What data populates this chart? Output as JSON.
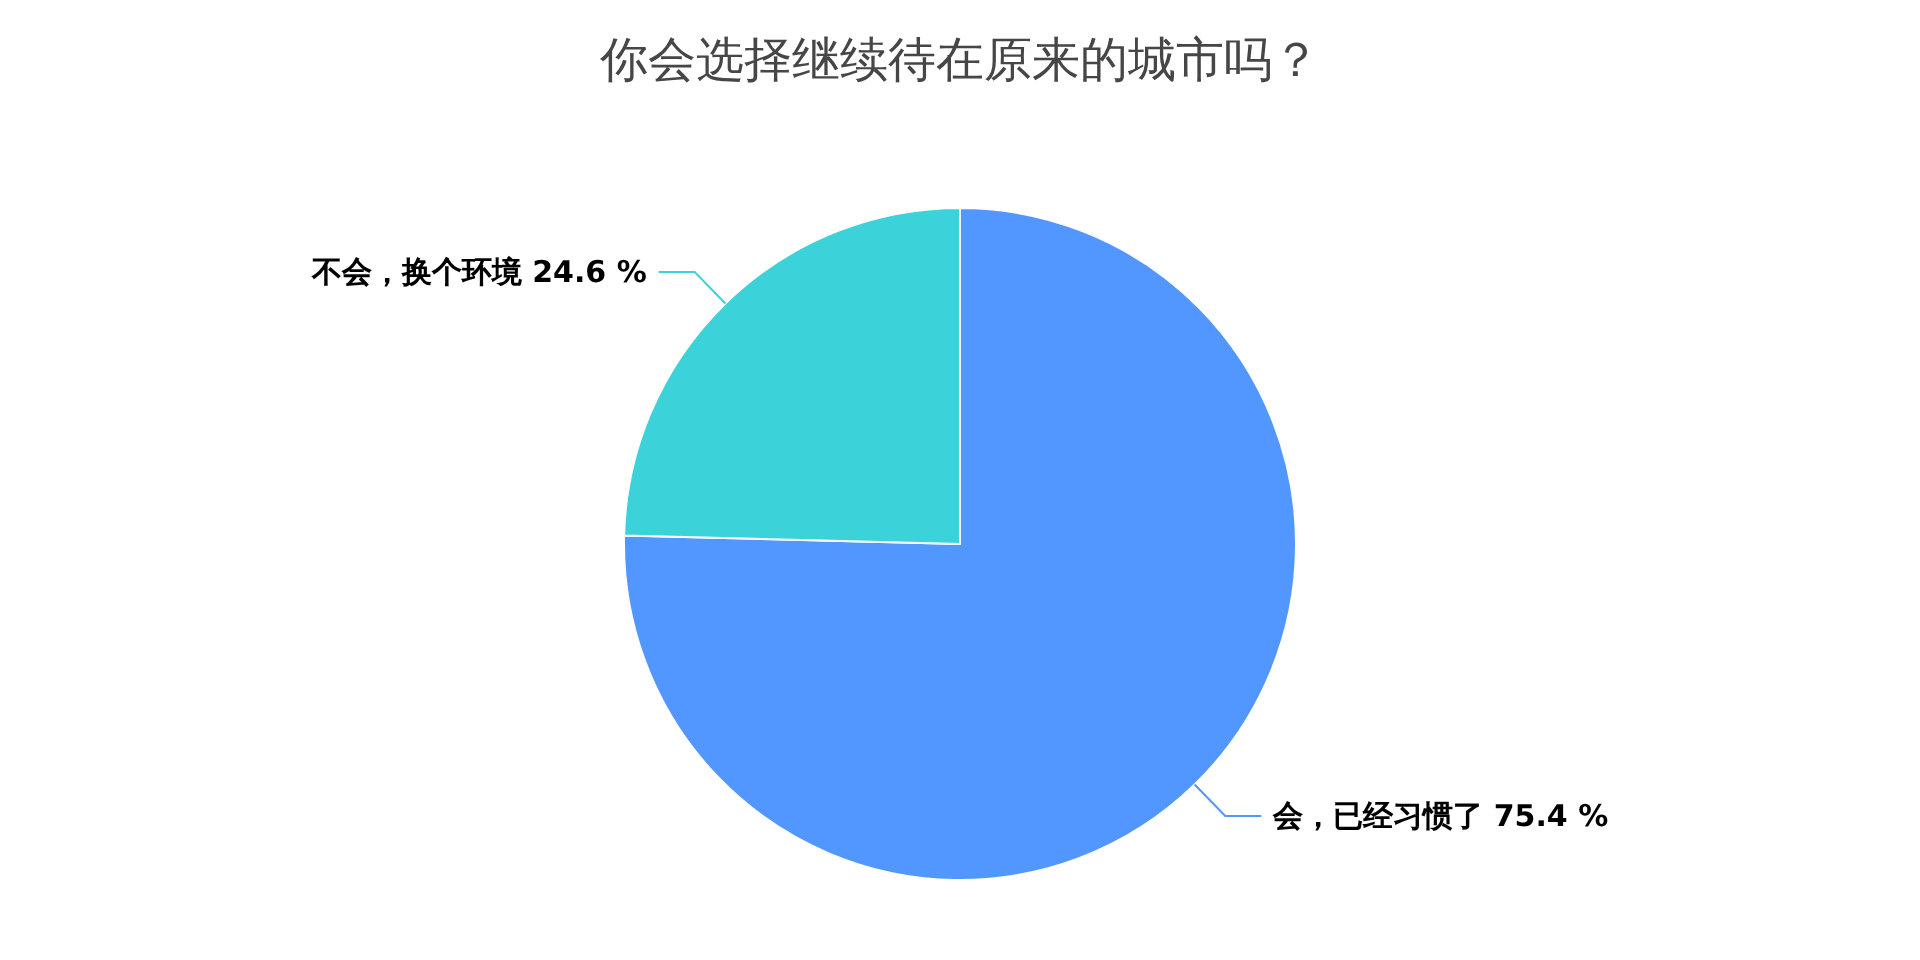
{
  "chart_data": {
    "type": "pie",
    "title": "你会选择继续待在原来的城市吗？",
    "categories": [
      "会，已经习惯了",
      "不会，换个环境"
    ],
    "values": [
      75.4,
      24.6
    ],
    "colors": [
      "#5197ff",
      "#3bd3d9"
    ],
    "value_labels": [
      "75.4 %",
      "24.6 %"
    ]
  }
}
